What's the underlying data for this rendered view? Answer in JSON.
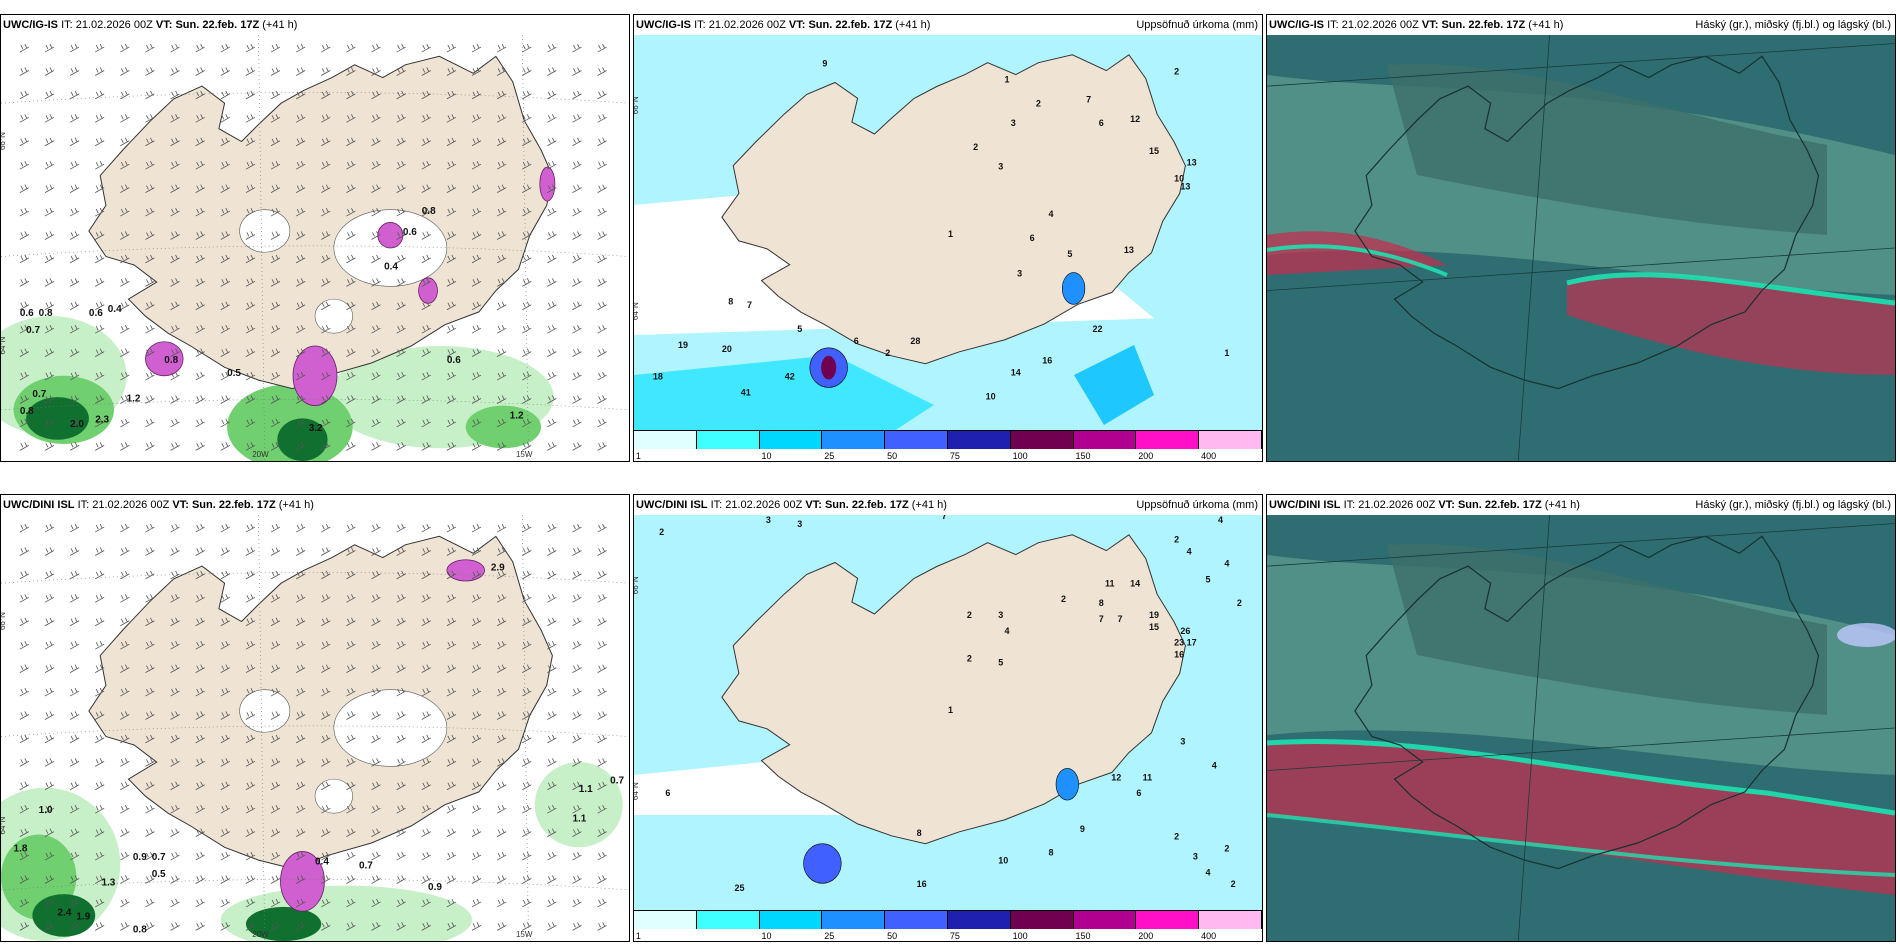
{
  "panels": [
    {
      "model": "UWC/IG-IS",
      "it_label": "IT:",
      "it": "21.02.2026 00Z",
      "vt_label": "VT:",
      "vt": "Sun. 22.feb. 17Z",
      "lead": "(+41 h)",
      "param": "",
      "lat_label": "66°N",
      "lat_label2": "64°N",
      "lon_label1": "20W",
      "lon_label2": "15W",
      "values": [
        {
          "t": "0.6",
          "x": 0.03,
          "y": 0.66
        },
        {
          "t": "0.8",
          "x": 0.06,
          "y": 0.66
        },
        {
          "t": "0.7",
          "x": 0.04,
          "y": 0.7
        },
        {
          "t": "0.6",
          "x": 0.14,
          "y": 0.66
        },
        {
          "t": "0.4",
          "x": 0.17,
          "y": 0.65
        },
        {
          "t": "0.5",
          "x": 0.36,
          "y": 0.8
        },
        {
          "t": "0.6",
          "x": 0.71,
          "y": 0.77
        },
        {
          "t": "0.7",
          "x": 0.05,
          "y": 0.85
        },
        {
          "t": "0.8",
          "x": 0.03,
          "y": 0.89
        },
        {
          "t": "1.2",
          "x": 0.2,
          "y": 0.86
        },
        {
          "t": "2.0",
          "x": 0.11,
          "y": 0.92
        },
        {
          "t": "2.3",
          "x": 0.15,
          "y": 0.91
        },
        {
          "t": "3.2",
          "x": 0.49,
          "y": 0.93
        },
        {
          "t": "1.2",
          "x": 0.81,
          "y": 0.9
        },
        {
          "t": "0.8",
          "x": 0.26,
          "y": 0.77
        },
        {
          "t": "0.4",
          "x": 0.61,
          "y": 0.55
        },
        {
          "t": "0.6",
          "x": 0.64,
          "y": 0.47
        },
        {
          "t": "0.8",
          "x": 0.67,
          "y": 0.42
        }
      ]
    },
    {
      "model": "UWC/IG-IS",
      "it_label": "IT:",
      "it": "21.02.2026 00Z",
      "vt_label": "VT:",
      "vt": "Sun. 22.feb. 17Z",
      "lead": "(+41 h)",
      "param": "Uppsöfnuð úrkoma (mm)",
      "lat_label": "66°N",
      "lat_label2": "64°N",
      "values": [
        {
          "t": "9",
          "x": 0.3,
          "y": 0.08
        },
        {
          "t": "1",
          "x": 0.59,
          "y": 0.12
        },
        {
          "t": "2",
          "x": 0.64,
          "y": 0.18
        },
        {
          "t": "3",
          "x": 0.6,
          "y": 0.23
        },
        {
          "t": "7",
          "x": 0.72,
          "y": 0.17
        },
        {
          "t": "6",
          "x": 0.74,
          "y": 0.23
        },
        {
          "t": "12",
          "x": 0.79,
          "y": 0.22
        },
        {
          "t": "15",
          "x": 0.82,
          "y": 0.3
        },
        {
          "t": "13",
          "x": 0.88,
          "y": 0.33
        },
        {
          "t": "10",
          "x": 0.86,
          "y": 0.37
        },
        {
          "t": "13",
          "x": 0.87,
          "y": 0.39
        },
        {
          "t": "2",
          "x": 0.54,
          "y": 0.29
        },
        {
          "t": "3",
          "x": 0.58,
          "y": 0.34
        },
        {
          "t": "4",
          "x": 0.66,
          "y": 0.46
        },
        {
          "t": "5",
          "x": 0.69,
          "y": 0.56
        },
        {
          "t": "6",
          "x": 0.63,
          "y": 0.52
        },
        {
          "t": "3",
          "x": 0.61,
          "y": 0.61
        },
        {
          "t": "1",
          "x": 0.5,
          "y": 0.51
        },
        {
          "t": "8",
          "x": 0.15,
          "y": 0.68
        },
        {
          "t": "7",
          "x": 0.18,
          "y": 0.69
        },
        {
          "t": "5",
          "x": 0.26,
          "y": 0.75
        },
        {
          "t": "6",
          "x": 0.35,
          "y": 0.78
        },
        {
          "t": "2",
          "x": 0.4,
          "y": 0.81
        },
        {
          "t": "28",
          "x": 0.44,
          "y": 0.78
        },
        {
          "t": "19",
          "x": 0.07,
          "y": 0.79
        },
        {
          "t": "20",
          "x": 0.14,
          "y": 0.8
        },
        {
          "t": "18",
          "x": 0.03,
          "y": 0.87
        },
        {
          "t": "42",
          "x": 0.24,
          "y": 0.87
        },
        {
          "t": "41",
          "x": 0.17,
          "y": 0.91
        },
        {
          "t": "14",
          "x": 0.6,
          "y": 0.86
        },
        {
          "t": "16",
          "x": 0.65,
          "y": 0.83
        },
        {
          "t": "22",
          "x": 0.73,
          "y": 0.75
        },
        {
          "t": "10",
          "x": 0.56,
          "y": 0.92
        },
        {
          "t": "13",
          "x": 0.78,
          "y": 0.55
        },
        {
          "t": "1",
          "x": 0.94,
          "y": 0.81
        },
        {
          "t": "2",
          "x": 0.86,
          "y": 0.1
        }
      ]
    },
    {
      "model": "UWC/IG-IS",
      "it_label": "IT:",
      "it": "21.02.2026 00Z",
      "vt_label": "VT:",
      "vt": "Sun. 22.feb. 17Z",
      "lead": "(+41 h)",
      "param": "Háský (gr.), miðský (fj.bl.) og lágský (bl.)"
    },
    {
      "model": "UWC/DINI ISL",
      "it_label": "IT:",
      "it": "21.02.2026 00Z",
      "vt_label": "VT:",
      "vt": "Sun. 22.feb. 17Z",
      "lead": "(+41 h)",
      "param": "",
      "lat_label": "66°N",
      "lat_label2": "64°N",
      "lon_label1": "20W",
      "lon_label2": "15W",
      "values": [
        {
          "t": "1.0",
          "x": 0.06,
          "y": 0.7
        },
        {
          "t": "1.8",
          "x": 0.02,
          "y": 0.79
        },
        {
          "t": "0.9",
          "x": 0.21,
          "y": 0.81
        },
        {
          "t": "0.7",
          "x": 0.24,
          "y": 0.81
        },
        {
          "t": "0.5",
          "x": 0.24,
          "y": 0.85
        },
        {
          "t": "1.3",
          "x": 0.16,
          "y": 0.87
        },
        {
          "t": "2.4",
          "x": 0.09,
          "y": 0.94
        },
        {
          "t": "1.9",
          "x": 0.12,
          "y": 0.95
        },
        {
          "t": "0.8",
          "x": 0.21,
          "y": 0.98
        },
        {
          "t": "0.9",
          "x": 0.68,
          "y": 0.88
        },
        {
          "t": "0.7",
          "x": 0.57,
          "y": 0.83
        },
        {
          "t": "1.1",
          "x": 0.92,
          "y": 0.65
        },
        {
          "t": "0.7",
          "x": 0.97,
          "y": 0.63
        },
        {
          "t": "1.1",
          "x": 0.91,
          "y": 0.72
        },
        {
          "t": "2.9",
          "x": 0.78,
          "y": 0.13
        },
        {
          "t": "0.4",
          "x": 0.5,
          "y": 0.82
        }
      ]
    },
    {
      "model": "UWC/DINI ISL",
      "it_label": "IT:",
      "it": "21.02.2026 00Z",
      "vt_label": "VT:",
      "vt": "Sun. 22.feb. 17Z",
      "lead": "(+41 h)",
      "param": "Uppsöfnuð úrkoma (mm)",
      "lat_label": "66°N",
      "lat_label2": "64°N",
      "values": [
        {
          "t": "2",
          "x": 0.04,
          "y": 0.05
        },
        {
          "t": "3",
          "x": 0.21,
          "y": 0.02
        },
        {
          "t": "3",
          "x": 0.26,
          "y": 0.03
        },
        {
          "t": "7",
          "x": 0.49,
          "y": 0.01
        },
        {
          "t": "4",
          "x": 0.93,
          "y": 0.02
        },
        {
          "t": "2",
          "x": 0.86,
          "y": 0.07
        },
        {
          "t": "4",
          "x": 0.88,
          "y": 0.1
        },
        {
          "t": "4",
          "x": 0.94,
          "y": 0.13
        },
        {
          "t": "5",
          "x": 0.91,
          "y": 0.17
        },
        {
          "t": "2",
          "x": 0.96,
          "y": 0.23
        },
        {
          "t": "11",
          "x": 0.75,
          "y": 0.18
        },
        {
          "t": "14",
          "x": 0.79,
          "y": 0.18
        },
        {
          "t": "8",
          "x": 0.74,
          "y": 0.23
        },
        {
          "t": "7",
          "x": 0.74,
          "y": 0.27
        },
        {
          "t": "7",
          "x": 0.77,
          "y": 0.27
        },
        {
          "t": "19",
          "x": 0.82,
          "y": 0.26
        },
        {
          "t": "15",
          "x": 0.82,
          "y": 0.29
        },
        {
          "t": "26",
          "x": 0.87,
          "y": 0.3
        },
        {
          "t": "23",
          "x": 0.86,
          "y": 0.33
        },
        {
          "t": "16",
          "x": 0.86,
          "y": 0.36
        },
        {
          "t": "17",
          "x": 0.88,
          "y": 0.33
        },
        {
          "t": "2",
          "x": 0.53,
          "y": 0.26
        },
        {
          "t": "3",
          "x": 0.58,
          "y": 0.26
        },
        {
          "t": "4",
          "x": 0.59,
          "y": 0.3
        },
        {
          "t": "2",
          "x": 0.53,
          "y": 0.37
        },
        {
          "t": "5",
          "x": 0.58,
          "y": 0.38
        },
        {
          "t": "2",
          "x": 0.68,
          "y": 0.22
        },
        {
          "t": "1",
          "x": 0.5,
          "y": 0.5
        },
        {
          "t": "6",
          "x": 0.05,
          "y": 0.71
        },
        {
          "t": "8",
          "x": 0.45,
          "y": 0.81
        },
        {
          "t": "10",
          "x": 0.58,
          "y": 0.88
        },
        {
          "t": "8",
          "x": 0.66,
          "y": 0.86
        },
        {
          "t": "9",
          "x": 0.71,
          "y": 0.8
        },
        {
          "t": "12",
          "x": 0.76,
          "y": 0.67
        },
        {
          "t": "11",
          "x": 0.81,
          "y": 0.67
        },
        {
          "t": "6",
          "x": 0.8,
          "y": 0.71
        },
        {
          "t": "2",
          "x": 0.86,
          "y": 0.82
        },
        {
          "t": "3",
          "x": 0.89,
          "y": 0.87
        },
        {
          "t": "2",
          "x": 0.94,
          "y": 0.85
        },
        {
          "t": "4",
          "x": 0.91,
          "y": 0.91
        },
        {
          "t": "2",
          "x": 0.95,
          "y": 0.94
        },
        {
          "t": "25",
          "x": 0.16,
          "y": 0.95
        },
        {
          "t": "16",
          "x": 0.45,
          "y": 0.94
        },
        {
          "t": "3",
          "x": 0.87,
          "y": 0.58
        },
        {
          "t": "4",
          "x": 0.92,
          "y": 0.64
        }
      ]
    },
    {
      "model": "UWC/DINI ISL",
      "it_label": "IT:",
      "it": "21.02.2026 00Z",
      "vt_label": "VT:",
      "vt": "Sun. 22.feb. 17Z",
      "lead": "(+41 h)",
      "param": "Háský (gr.), miðský (fj.bl.) og lágský (bl.)"
    }
  ],
  "colorbar": {
    "labels": [
      "1",
      "10",
      "25",
      "50",
      "75",
      "100",
      "150",
      "200",
      "400"
    ],
    "colors": [
      "#e0ffff",
      "#40ffff",
      "#00d7ff",
      "#1e90ff",
      "#4060ff",
      "#2020b0",
      "#700050",
      "#b00090",
      "#ff10c8",
      "#ffb8f0"
    ]
  },
  "colors": {
    "land": "#efe4d4",
    "sea_light": "#b0f4ff",
    "precip_green_light": "#c8f0c8",
    "precip_green_mid": "#70d070",
    "precip_green_dark": "#107030",
    "precip_purple": "#d060d0",
    "cloud_dark": "#2e6e72",
    "cloud_mid": "#5f9e8f",
    "cloud_red": "#c03050",
    "cloud_teal": "#20e0b0"
  }
}
